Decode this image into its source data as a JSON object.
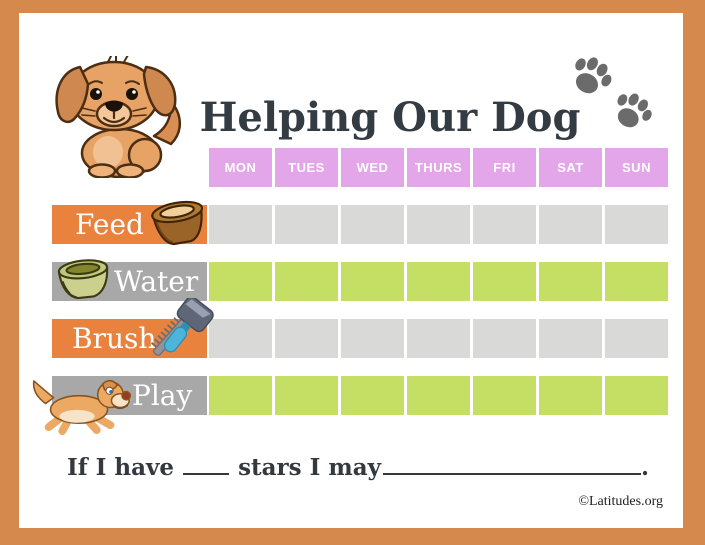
{
  "page": {
    "title": "Helping Our Dog",
    "copyright": "©Latitudes.org"
  },
  "colors": {
    "border_orange": "#d5894c",
    "header_purple": "#e3a6e9",
    "label_orange": "#e8823d",
    "label_gray": "#a8a8a8",
    "cell_gray": "#d9d9d7",
    "cell_green": "#c4df63",
    "paw_gray": "#6b6b6b",
    "title_text": "#343c43"
  },
  "icons": {
    "puppy": "puppy-illustration",
    "paws": "paw-prints-icon",
    "feed": "feed-bowl-icon",
    "water": "water-bowl-icon",
    "brush": "brush-icon",
    "play": "running-dog-icon"
  },
  "table": {
    "days": [
      "MON",
      "TUES",
      "WED",
      "THURS",
      "FRI",
      "SAT",
      "SUN"
    ],
    "rows": [
      {
        "label": "Feed",
        "label_style": "orange",
        "cell_style": "gray",
        "icon": "feed-bowl-icon"
      },
      {
        "label": "Water",
        "label_style": "gray",
        "cell_style": "green",
        "icon": "water-bowl-icon"
      },
      {
        "label": "Brush",
        "label_style": "orange",
        "cell_style": "gray",
        "icon": "brush-icon"
      },
      {
        "label": "Play",
        "label_style": "gray",
        "cell_style": "green",
        "icon": "running-dog-icon"
      }
    ]
  },
  "sentence": {
    "part1": "If I have",
    "part2": "stars I may",
    "period": "."
  }
}
